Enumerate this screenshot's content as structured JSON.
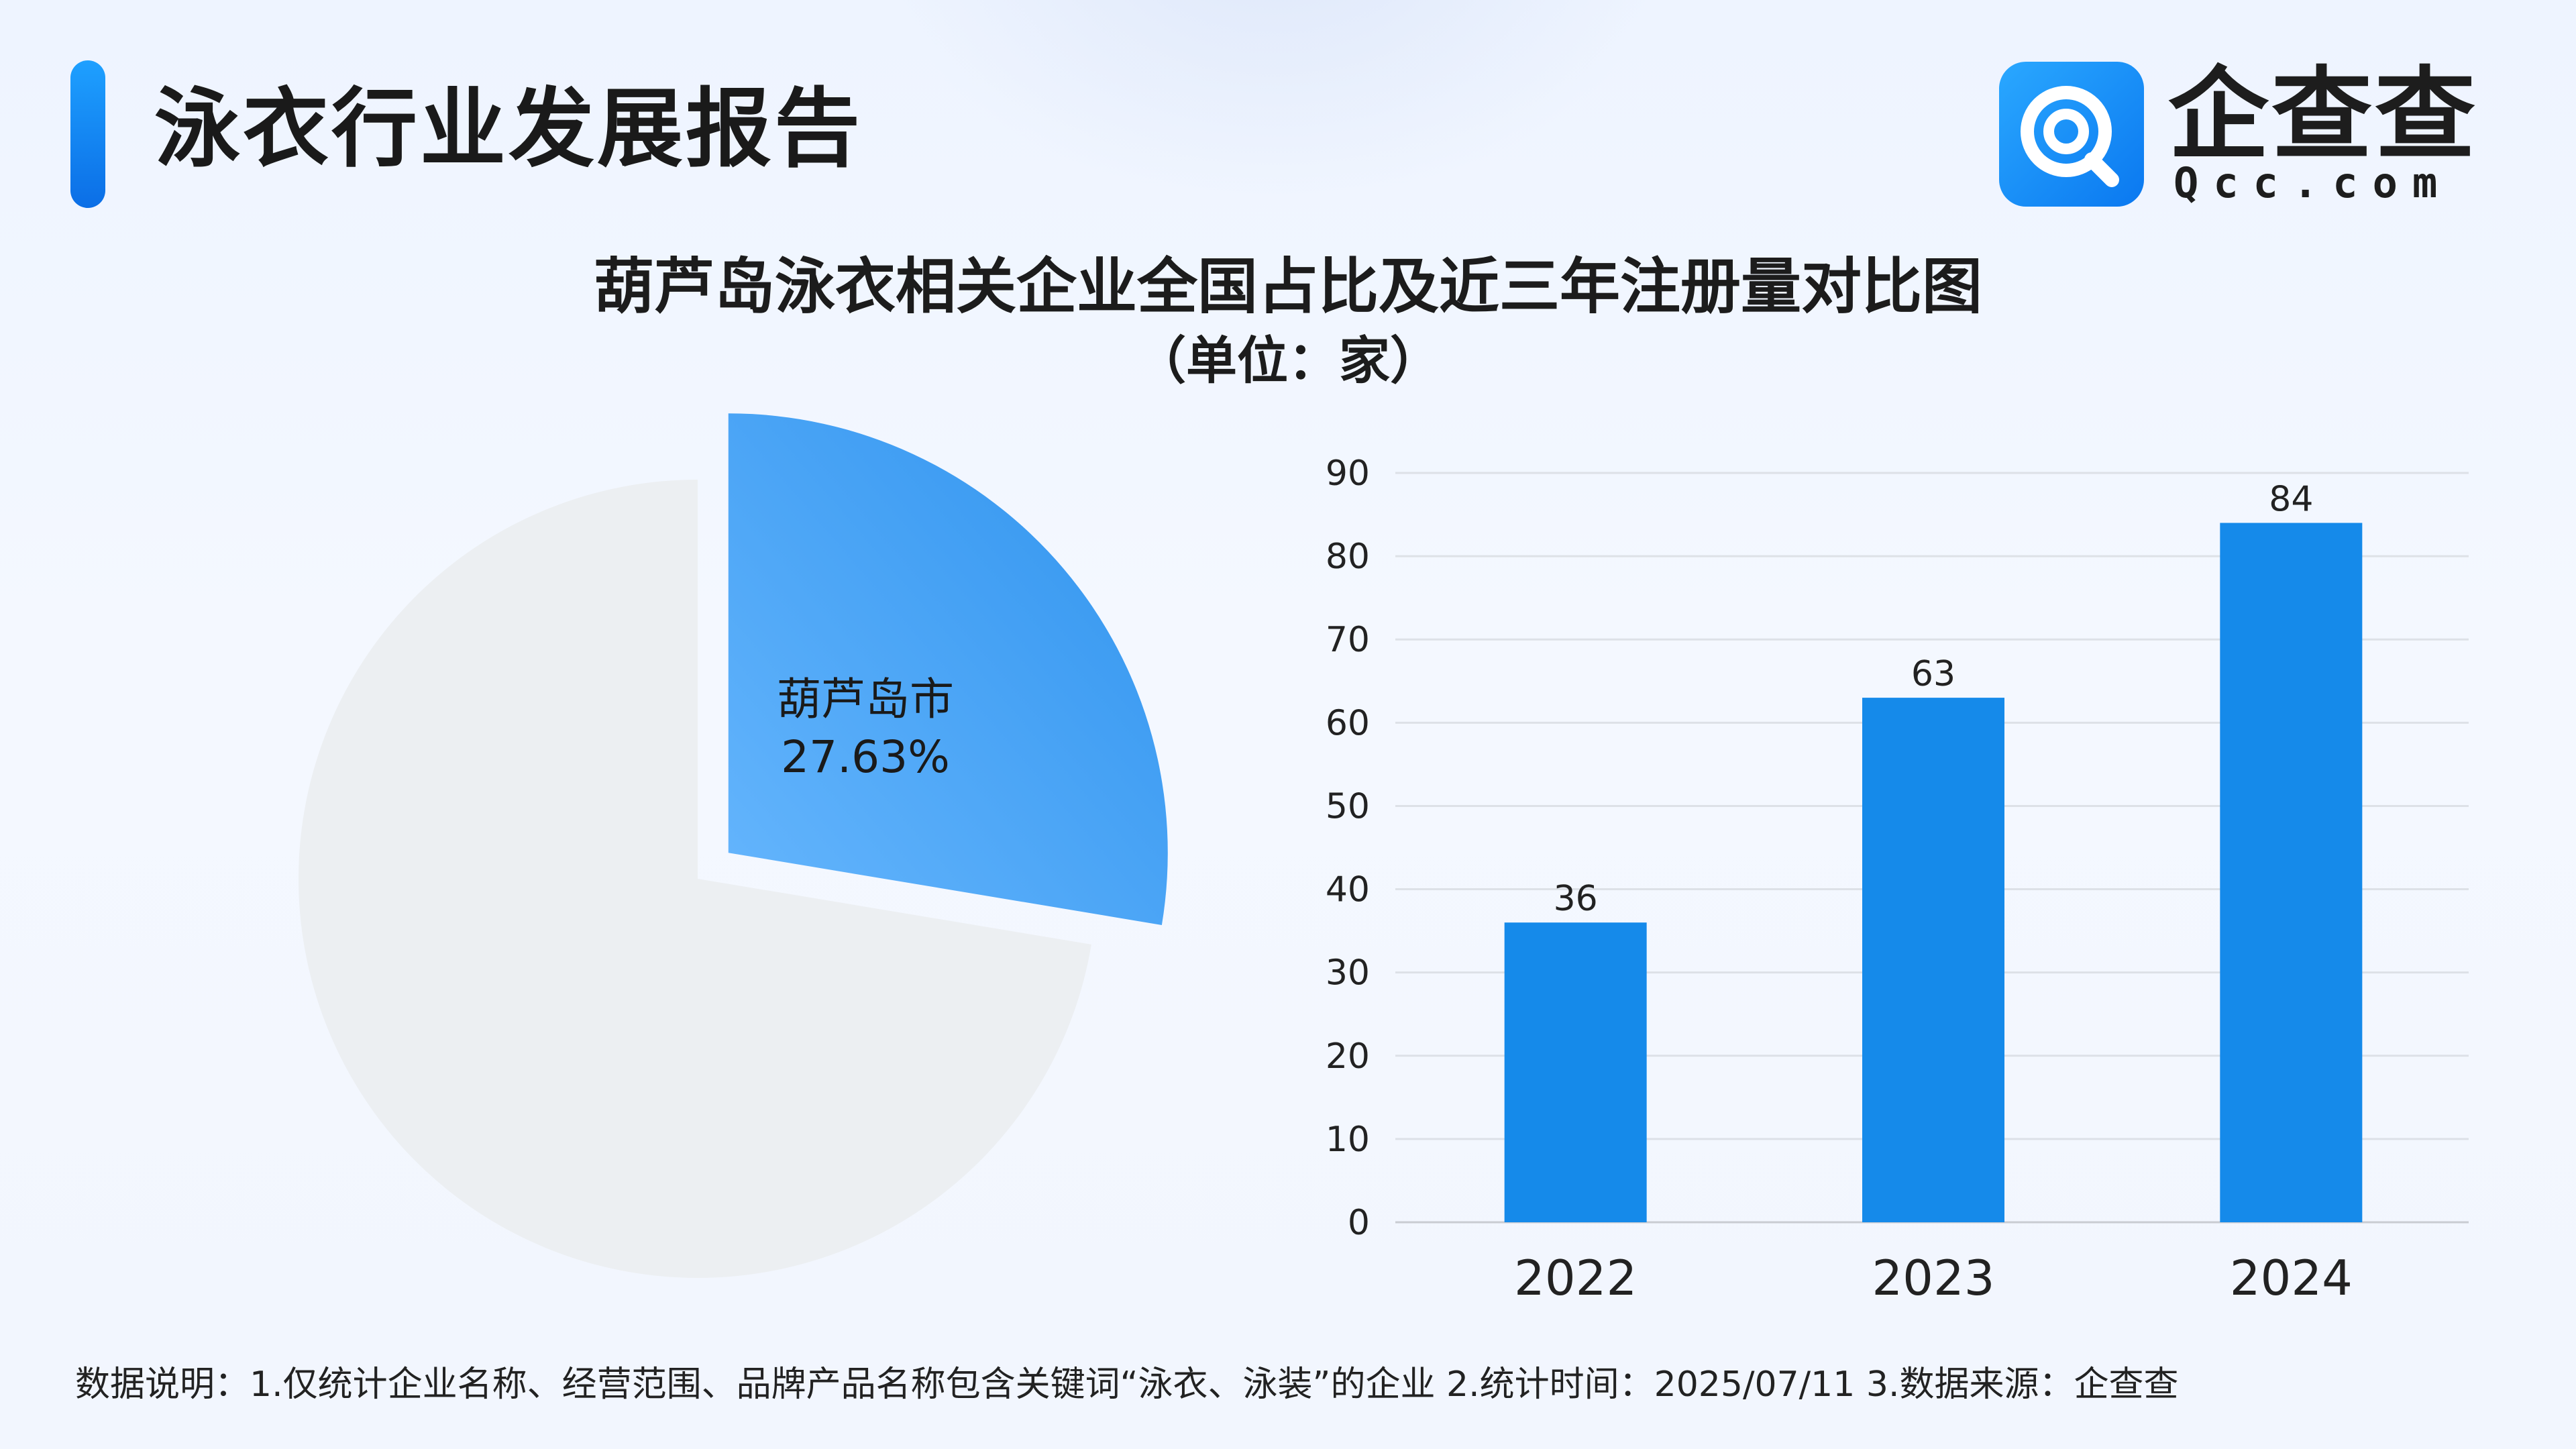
{
  "header": {
    "title": "泳衣行业发展报告",
    "logo_name": "企查查",
    "logo_sub": "Qcc.com",
    "logo_icon": "qcc-magnifier-icon"
  },
  "chart": {
    "title": "葫芦岛泳衣相关企业全国占比及近三年注册量对比图",
    "unit": "（单位：家）"
  },
  "chart_data": [
    {
      "type": "pie",
      "slices": [
        {
          "label": "葫芦岛市",
          "value": 27.63,
          "display": "27.63%",
          "color": "#3a9cf2",
          "exploded": true
        },
        {
          "label": "",
          "value": 72.37,
          "color": "#eceff2"
        }
      ]
    },
    {
      "type": "bar",
      "categories": [
        "2022",
        "2023",
        "2024"
      ],
      "values": [
        36,
        63,
        84
      ],
      "ylim": [
        0,
        90
      ],
      "yticks": [
        0,
        10,
        20,
        30,
        40,
        50,
        60,
        70,
        80,
        90
      ],
      "grid": true,
      "color": "#158aea"
    }
  ],
  "footnote": "数据说明：1.仅统计企业名称、经营范围、品牌产品名称包含关键词“泳衣、泳装”的企业   2.统计时间：2025/07/11    3.数据来源：企查查"
}
